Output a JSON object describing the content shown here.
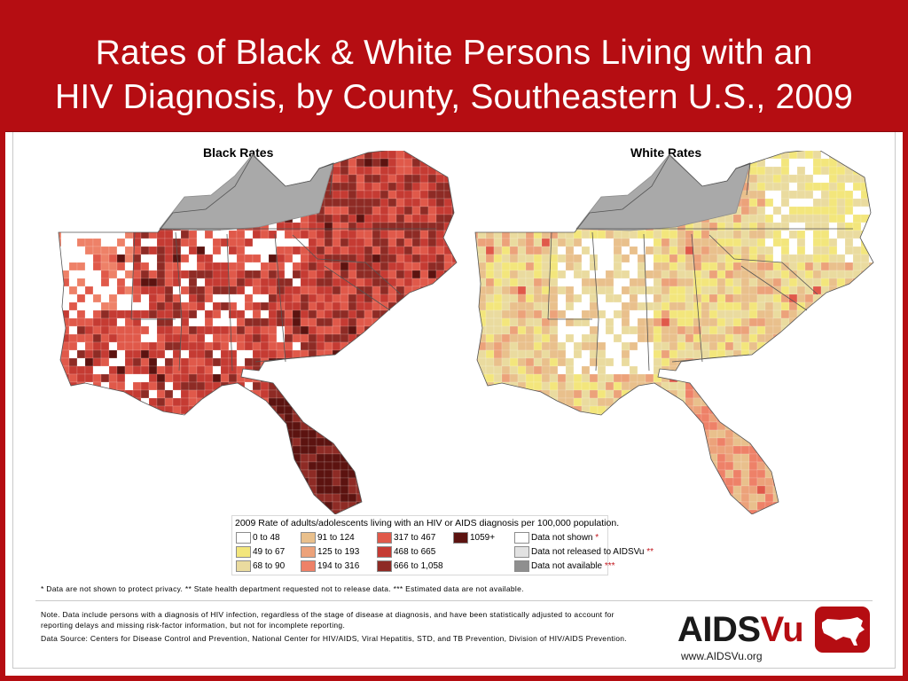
{
  "title": {
    "line1": "Rates of Black & White Persons Living with an",
    "line2": "HIV Diagnosis, by County, Southeastern U.S., 2009"
  },
  "maps": {
    "black": {
      "label": "Black Rates"
    },
    "white": {
      "label": "White Rates"
    }
  },
  "legend": {
    "title": "2009 Rate of adults/adolescents living with an HIV or AIDS diagnosis per 100,000 population.",
    "items": [
      {
        "label": "0 to 48",
        "color": "#ffffff"
      },
      {
        "label": "49 to 67",
        "color": "#f3e67c"
      },
      {
        "label": "68 to 90",
        "color": "#eadb9f"
      },
      {
        "label": "91 to 124",
        "color": "#e9c08c"
      },
      {
        "label": "125 to 193",
        "color": "#eca27a"
      },
      {
        "label": "194 to 316",
        "color": "#ee8168"
      },
      {
        "label": "317 to 467",
        "color": "#e0594a"
      },
      {
        "label": "468 to 665",
        "color": "#c53b33"
      },
      {
        "label": "666 to 1,058",
        "color": "#8e2b25"
      },
      {
        "label": "1059+",
        "color": "#5c1310"
      }
    ],
    "special": [
      {
        "label": "Data not shown",
        "marker": "*",
        "color": "#ffffff"
      },
      {
        "label": "Data not released to AIDSVu",
        "marker": "**",
        "color": "#e2e2e2"
      },
      {
        "label": "Data not available",
        "marker": "***",
        "color": "#8f8f8f"
      }
    ]
  },
  "footnote": "* Data are not shown to protect privacy.  ** State health department requested not to release data.  *** Estimated data are not available.",
  "note": "Note. Data include persons with a diagnosis of HIV infection, regardless of the stage of disease at diagnosis, and have been statistically adjusted to account for reporting delays and missing risk-factor information, but not for incomplete reporting.",
  "source": "Data Source: Centers for Disease Control and Prevention, National Center for HIV/AIDS, Viral Hepatitis, STD, and TB Prevention, Division of HIV/AIDS Prevention.",
  "logo": {
    "part1": "AIDS",
    "part2": "Vu",
    "url": "www.AIDSVu.org"
  },
  "colors": {
    "brand_red": "#b50d12",
    "kentucky_gray": "#a9a9a9"
  }
}
